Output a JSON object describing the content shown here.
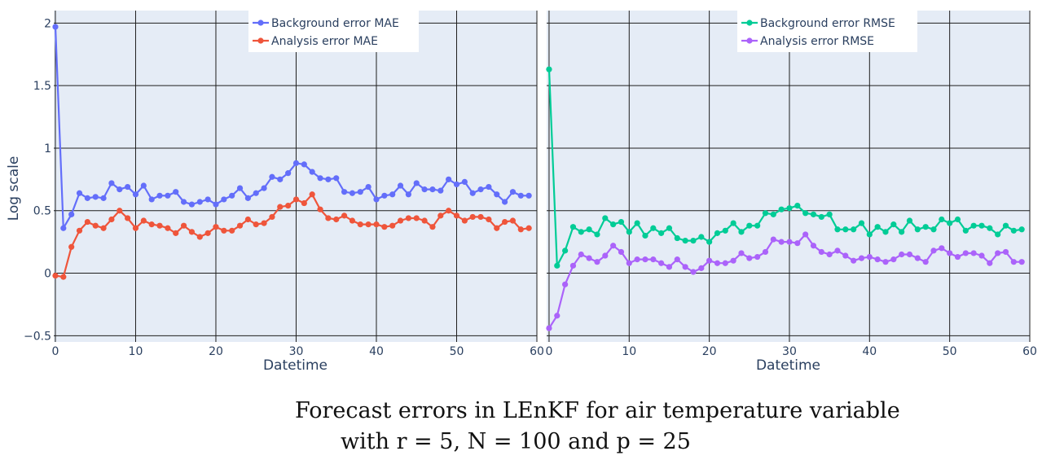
{
  "chart_data": [
    {
      "type": "line",
      "xlabel": "Datetime",
      "ylabel": "Log scale",
      "xlim": [
        -0.2,
        60
      ],
      "ylim": [
        -0.55,
        2.1
      ],
      "xticks": [
        0,
        10,
        20,
        30,
        40,
        50,
        60
      ],
      "yticks": [
        -0.5,
        0,
        0.5,
        1,
        1.5,
        2
      ],
      "ytick_labels": [
        "−0.5",
        "0",
        "0.5",
        "1",
        "1.5",
        "2"
      ],
      "legend_position": "top-center",
      "series": [
        {
          "name": "Background error MAE",
          "color": "#636efa",
          "values": [
            1.97,
            0.36,
            0.47,
            0.64,
            0.6,
            0.61,
            0.6,
            0.72,
            0.67,
            0.69,
            0.63,
            0.7,
            0.59,
            0.62,
            0.62,
            0.65,
            0.57,
            0.55,
            0.57,
            0.59,
            0.55,
            0.59,
            0.62,
            0.68,
            0.6,
            0.64,
            0.68,
            0.77,
            0.75,
            0.8,
            0.88,
            0.87,
            0.81,
            0.76,
            0.75,
            0.76,
            0.65,
            0.64,
            0.65,
            0.69,
            0.59,
            0.62,
            0.63,
            0.7,
            0.63,
            0.72,
            0.67,
            0.67,
            0.66,
            0.75,
            0.71,
            0.73,
            0.64,
            0.67,
            0.69,
            0.63,
            0.57,
            0.65,
            0.62,
            0.62
          ]
        },
        {
          "name": "Analysis error MAE",
          "color": "#ef553b",
          "values": [
            -0.02,
            -0.03,
            0.21,
            0.34,
            0.41,
            0.38,
            0.36,
            0.43,
            0.5,
            0.44,
            0.36,
            0.42,
            0.39,
            0.38,
            0.36,
            0.32,
            0.38,
            0.33,
            0.29,
            0.32,
            0.37,
            0.34,
            0.34,
            0.38,
            0.43,
            0.39,
            0.4,
            0.45,
            0.53,
            0.54,
            0.59,
            0.56,
            0.63,
            0.51,
            0.44,
            0.43,
            0.46,
            0.42,
            0.39,
            0.39,
            0.39,
            0.37,
            0.38,
            0.42,
            0.44,
            0.44,
            0.42,
            0.37,
            0.46,
            0.5,
            0.46,
            0.42,
            0.45,
            0.45,
            0.43,
            0.36,
            0.41,
            0.42,
            0.35,
            0.36
          ]
        }
      ]
    },
    {
      "type": "line",
      "xlabel": "Datetime",
      "ylabel": "",
      "xlim": [
        -0.3,
        60
      ],
      "ylim": [
        -0.55,
        2.1
      ],
      "xticks": [
        0,
        10,
        20,
        30,
        40,
        50,
        60
      ],
      "legend_position": "top-center",
      "series": [
        {
          "name": "Background error RMSE",
          "color": "#00cc96",
          "values": [
            1.63,
            0.06,
            0.18,
            0.37,
            0.33,
            0.35,
            0.31,
            0.44,
            0.39,
            0.41,
            0.33,
            0.4,
            0.3,
            0.36,
            0.32,
            0.36,
            0.28,
            0.26,
            0.26,
            0.29,
            0.25,
            0.32,
            0.34,
            0.4,
            0.33,
            0.38,
            0.38,
            0.48,
            0.47,
            0.51,
            0.52,
            0.54,
            0.48,
            0.47,
            0.45,
            0.47,
            0.35,
            0.35,
            0.35,
            0.4,
            0.31,
            0.37,
            0.33,
            0.39,
            0.33,
            0.42,
            0.35,
            0.37,
            0.35,
            0.43,
            0.4,
            0.43,
            0.34,
            0.38,
            0.38,
            0.36,
            0.31,
            0.38,
            0.34,
            0.35
          ]
        },
        {
          "name": "Analysis error RMSE",
          "color": "#ab63fa",
          "values": [
            -0.44,
            -0.34,
            -0.09,
            0.06,
            0.15,
            0.12,
            0.09,
            0.14,
            0.22,
            0.17,
            0.08,
            0.11,
            0.11,
            0.11,
            0.08,
            0.05,
            0.11,
            0.05,
            0.01,
            0.04,
            0.1,
            0.08,
            0.08,
            0.1,
            0.16,
            0.12,
            0.13,
            0.17,
            0.27,
            0.25,
            0.25,
            0.24,
            0.31,
            0.22,
            0.17,
            0.15,
            0.18,
            0.14,
            0.1,
            0.12,
            0.13,
            0.11,
            0.09,
            0.11,
            0.15,
            0.15,
            0.12,
            0.09,
            0.18,
            0.2,
            0.16,
            0.13,
            0.16,
            0.16,
            0.14,
            0.08,
            0.16,
            0.17,
            0.09,
            0.09
          ]
        }
      ]
    }
  ],
  "caption": {
    "line1": "Forecast errors in LEnKF for air temperature variable",
    "line2": "with r = 5, N = 100 and p = 25"
  }
}
